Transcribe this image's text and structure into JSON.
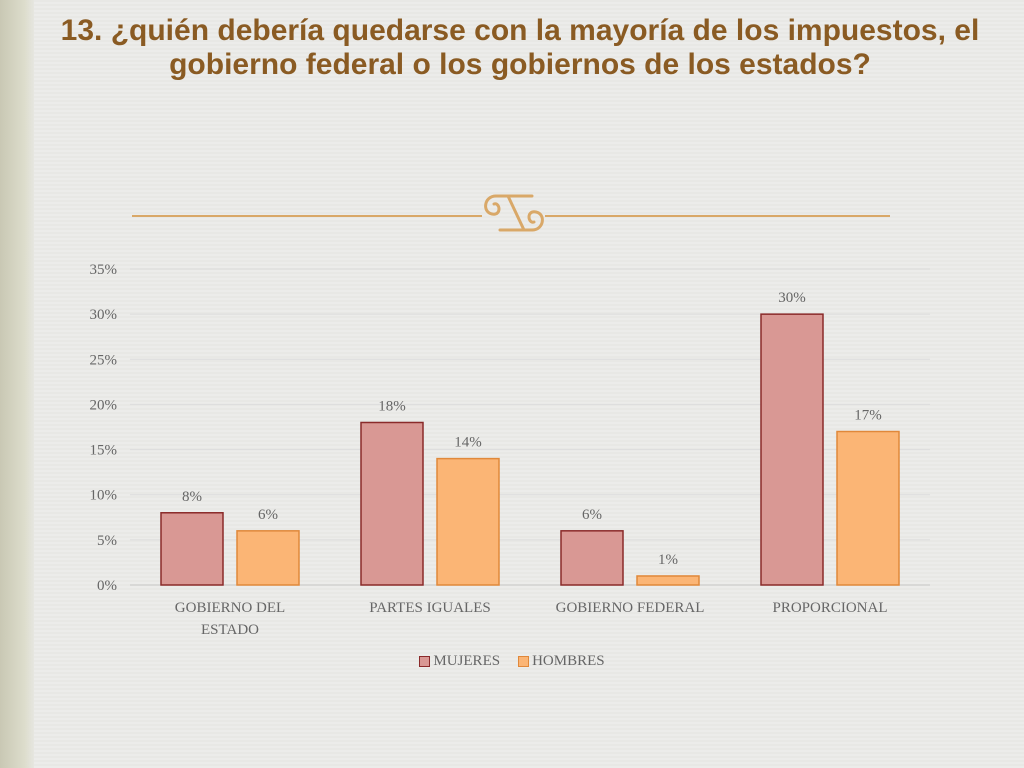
{
  "slide": {
    "title": "13. ¿quién debería quedarse con la mayoría de los impuestos, el gobierno federal o los gobiernos de los estados?",
    "ornament_icon": "scroll-ornament-icon",
    "accent_color": "#d9a868",
    "title_color": "#8a5b23"
  },
  "chart_data": {
    "type": "bar",
    "categories": [
      "GOBIERNO DEL ESTADO",
      "PARTES IGUALES",
      "GOBIERNO FEDERAL",
      "PROPORCIONAL"
    ],
    "series": [
      {
        "name": "MUJERES",
        "values": [
          8,
          18,
          6,
          30
        ],
        "labels": [
          "8%",
          "18%",
          "6%",
          "30%"
        ],
        "color": "#d99894",
        "stroke": "#8a2a2a"
      },
      {
        "name": "HOMBRES",
        "values": [
          6,
          14,
          1,
          17
        ],
        "labels": [
          "6%",
          "14%",
          "1%",
          "17%"
        ],
        "color": "#fbb575",
        "stroke": "#e0883a"
      }
    ],
    "y_ticks": [
      "0%",
      "5%",
      "10%",
      "15%",
      "20%",
      "25%",
      "30%",
      "35%"
    ],
    "ylim": [
      0,
      35
    ],
    "grid": true,
    "legend_position": "bottom",
    "xlabel": "",
    "ylabel": ""
  }
}
